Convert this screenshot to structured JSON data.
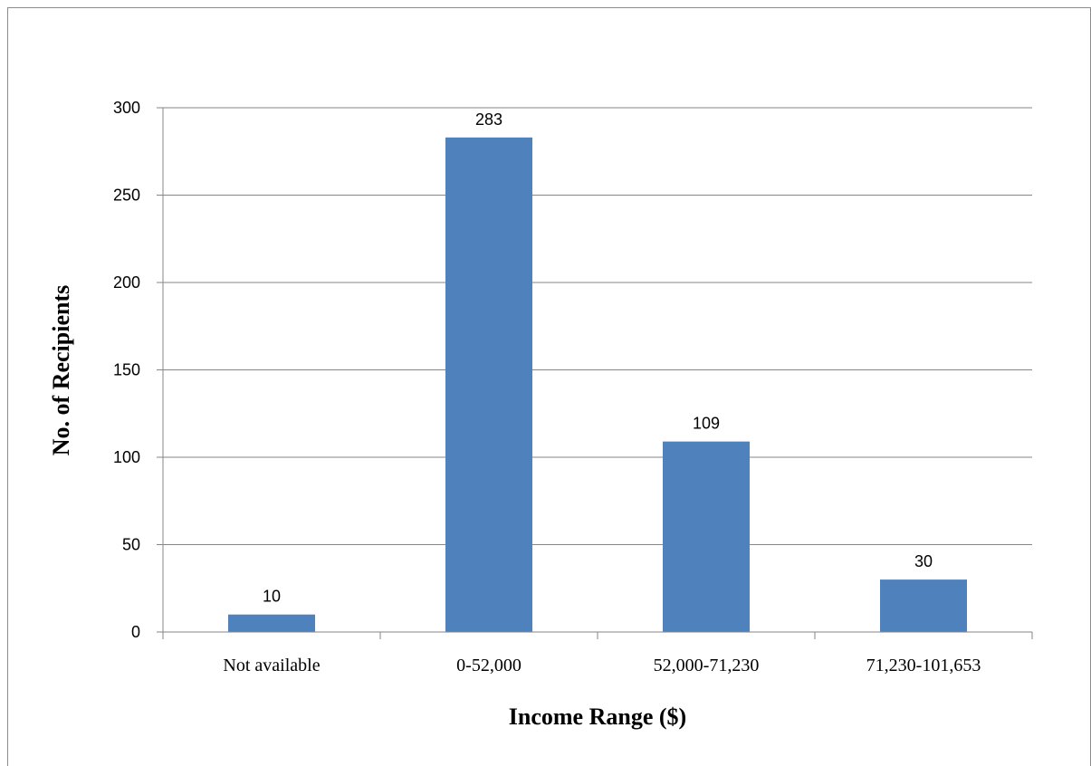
{
  "chart_data": {
    "type": "bar",
    "title": "",
    "categories": [
      "Not available",
      "0-52,000",
      "52,000-71,230",
      "71,230-101,653"
    ],
    "values": [
      10,
      283,
      109,
      30
    ],
    "data_labels": [
      "10",
      "283",
      "109",
      "30"
    ],
    "xlabel": "Income Range ($)",
    "ylabel": "No. of Recipients",
    "ylim": [
      0,
      300
    ],
    "yticks": [
      0,
      50,
      100,
      150,
      200,
      250,
      300
    ],
    "grid": true,
    "legend": "none",
    "bar_color": "#4F81BD",
    "gridline_color": "#868686"
  }
}
